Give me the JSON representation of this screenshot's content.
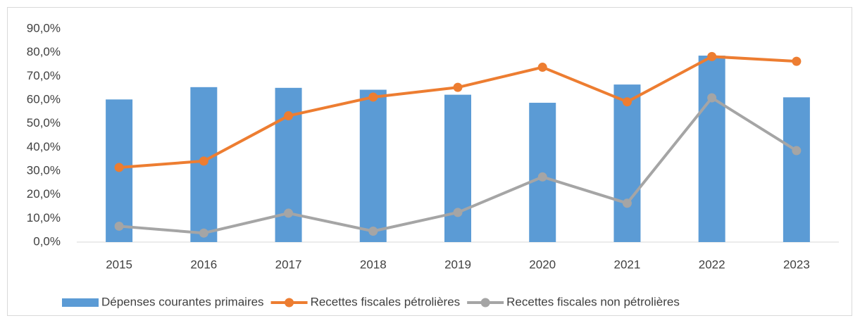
{
  "chart_data": {
    "type": "combo",
    "categories": [
      "2015",
      "2016",
      "2017",
      "2018",
      "2019",
      "2020",
      "2021",
      "2022",
      "2023"
    ],
    "series": [
      {
        "name": "Dépenses courantes primaires",
        "type": "bar",
        "color": "#5b9bd5",
        "values": [
          60.2,
          65.4,
          65.1,
          64.3,
          62.2,
          58.8,
          66.5,
          78.7,
          61.1
        ]
      },
      {
        "name": "Recettes fiscales pétrolières",
        "type": "line",
        "color": "#ed7d31",
        "values": [
          31.5,
          34.2,
          53.3,
          61.2,
          65.3,
          73.8,
          59.2,
          78.3,
          76.3
        ]
      },
      {
        "name": "Recettes fiscales non pétrolières",
        "type": "line",
        "color": "#a5a5a5",
        "values": [
          6.7,
          3.8,
          12.2,
          4.6,
          12.5,
          27.5,
          16.4,
          60.9,
          38.6
        ]
      }
    ],
    "ylim": [
      0,
      90
    ],
    "yticks": [
      {
        "value": 0,
        "label": "0,0%"
      },
      {
        "value": 10,
        "label": "10,0%"
      },
      {
        "value": 20,
        "label": "20,0%"
      },
      {
        "value": 30,
        "label": "30,0%"
      },
      {
        "value": 40,
        "label": "40,0%"
      },
      {
        "value": 50,
        "label": "50,0%"
      },
      {
        "value": 60,
        "label": "60,0%"
      },
      {
        "value": 70,
        "label": "70,0%"
      },
      {
        "value": 80,
        "label": "80,0%"
      },
      {
        "value": 90,
        "label": "90,0%"
      }
    ],
    "grid": false,
    "legend": "bottom"
  }
}
